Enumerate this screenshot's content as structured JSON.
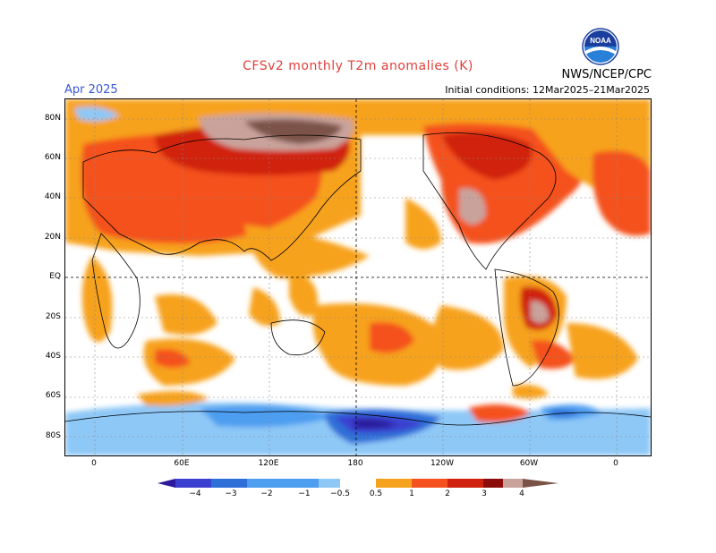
{
  "header": {
    "title": "CFSv2 monthly T2m anomalies (K)",
    "month": "Apr 2025",
    "initial_conditions": "Initial conditions: 12Mar2025–21Mar2025",
    "org": "NWS/NCEP/CPC",
    "logo_text": "NOAA"
  },
  "axes": {
    "lat_labels": [
      "80N",
      "60N",
      "40N",
      "20N",
      "EQ",
      "20S",
      "40S",
      "60S",
      "80S"
    ],
    "lon_labels": [
      "0",
      "60E",
      "120E",
      "180",
      "120W",
      "60W",
      "0"
    ]
  },
  "colorbar": {
    "labels": [
      "−4",
      "−3",
      "−2",
      "−1",
      "−0.5",
      "0.5",
      "1",
      "2",
      "3",
      "4"
    ],
    "colors": [
      "#2b1a9e",
      "#3b3fd0",
      "#2f6fd8",
      "#4d9df0",
      "#8ec8f7",
      "#ffffff",
      "#f7a21c",
      "#f4511e",
      "#d0200e",
      "#8c0c0c",
      "#c9a39b",
      "#7b5248"
    ]
  }
}
